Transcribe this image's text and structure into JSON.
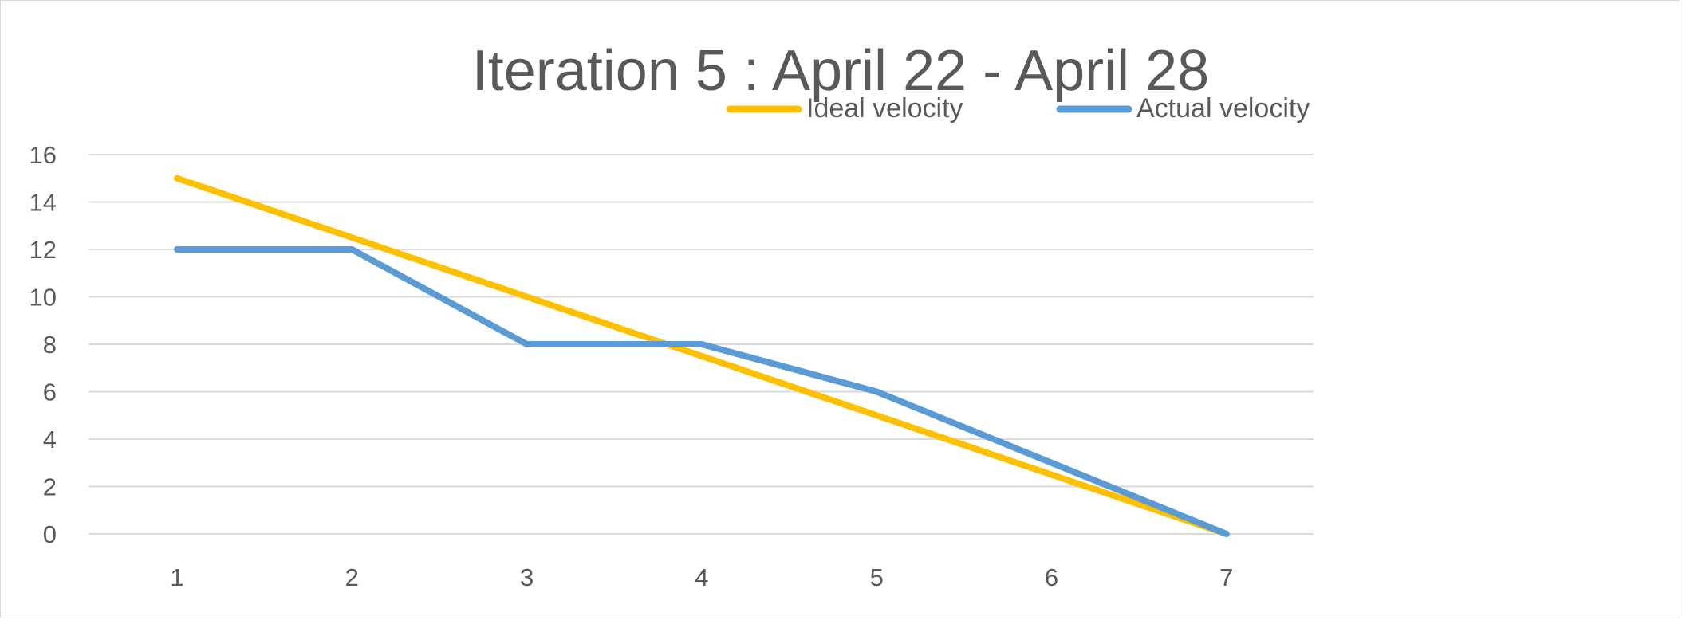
{
  "chart_data": {
    "type": "line",
    "title": "Iteration 5 : April 22 - April 28",
    "xlabel": "",
    "ylabel": "",
    "categories": [
      "1",
      "2",
      "3",
      "4",
      "5",
      "6",
      "7"
    ],
    "ylim": [
      0,
      16
    ],
    "yticks": [
      0,
      2,
      4,
      6,
      8,
      10,
      12,
      14,
      16
    ],
    "grid": true,
    "legend_position": "top-right",
    "series": [
      {
        "name": "Ideal velocity",
        "color": "#FFC000",
        "values": [
          15,
          12.5,
          10,
          7.5,
          5,
          2.5,
          0
        ]
      },
      {
        "name": "Actual velocity",
        "color": "#5B9BD5",
        "values": [
          12,
          12,
          8,
          8,
          6,
          3,
          0
        ]
      }
    ]
  }
}
